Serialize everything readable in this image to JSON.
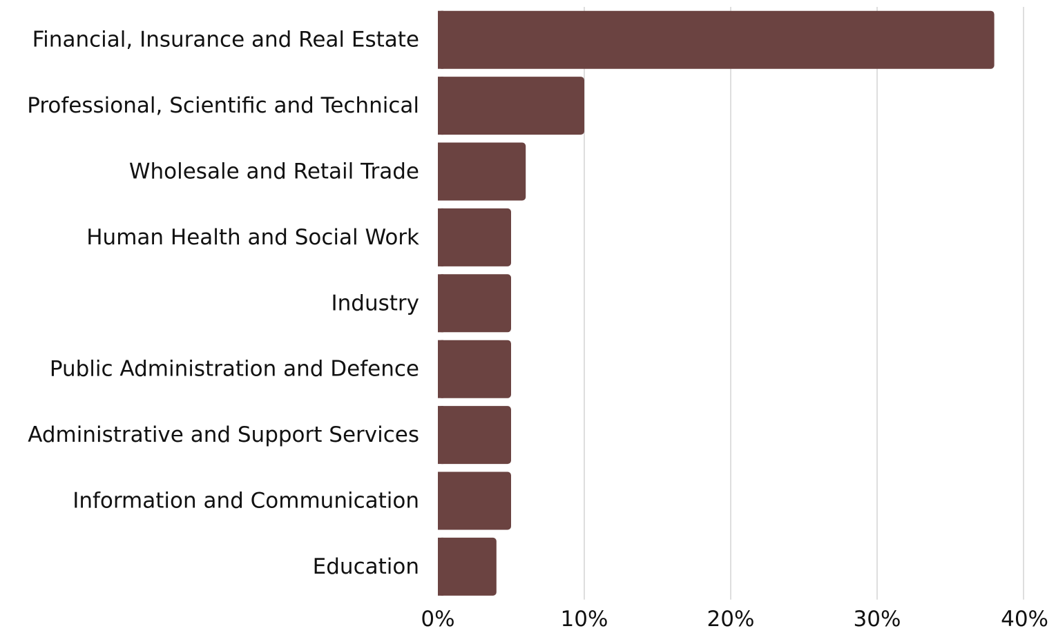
{
  "chart_data": {
    "type": "bar",
    "orientation": "horizontal",
    "categories": [
      "Financial, Insurance and Real Estate",
      "Professional, Scientific and Technical",
      "Wholesale and Retail Trade",
      "Human Health and Social Work",
      "Industry",
      "Public Administration and Defence",
      "Administrative and Support Services",
      "Information and Communication",
      "Education"
    ],
    "values": [
      38,
      10,
      6,
      5,
      5,
      5,
      5,
      5,
      4
    ],
    "xlim": [
      0,
      40
    ],
    "x_ticks": [
      0,
      10,
      20,
      30,
      40
    ],
    "x_tick_labels": [
      "0%",
      "10%",
      "20%",
      "30%",
      "40%"
    ],
    "title": "",
    "xlabel": "",
    "ylabel": "",
    "grid": "vertical",
    "legend": "none",
    "bar_color": "#6b4341"
  }
}
